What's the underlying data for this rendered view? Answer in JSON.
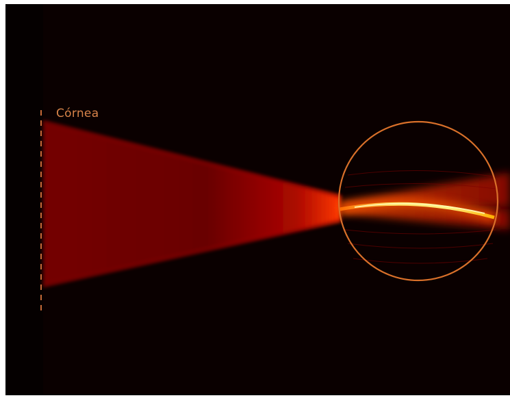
{
  "labels": {
    "cornea": "Córnea"
  },
  "colors": {
    "background": "#0a0000",
    "beam": "#a00000",
    "focus": "#ffe060",
    "circle": "#d9702a",
    "cornea_marker": "#c86a38",
    "label": "#d9844a"
  }
}
